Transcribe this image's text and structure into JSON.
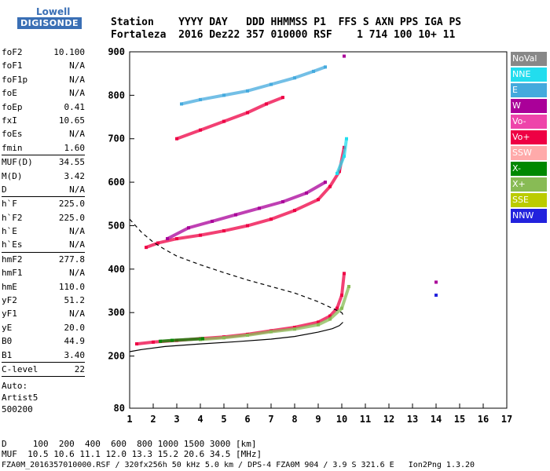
{
  "logo": {
    "line1": "Lowell",
    "line2": "DIGISONDE"
  },
  "header": {
    "row1": "Station    YYYY DAY   DDD HHMMSS P1  FFS S AXN PPS IGA PS",
    "row2": "Fortaleza  2016 Dez22 357 010000 RSF    1 714 100 10+ 11"
  },
  "params": [
    {
      "k": "foF2",
      "v": "10.100"
    },
    {
      "k": "foF1",
      "v": "N/A"
    },
    {
      "k": "foF1p",
      "v": "N/A"
    },
    {
      "k": "foE",
      "v": "N/A"
    },
    {
      "k": "foEp",
      "v": "0.41"
    },
    {
      "k": "fxI",
      "v": "10.65"
    },
    {
      "k": "foEs",
      "v": "N/A"
    },
    {
      "k": "fmin",
      "v": "1.60"
    },
    {
      "sep": true
    },
    {
      "k": "MUF(D)",
      "v": "34.55"
    },
    {
      "k": "M(D)",
      "v": "3.42"
    },
    {
      "k": "D",
      "v": "N/A"
    },
    {
      "sep": true
    },
    {
      "k": "h`F",
      "v": "225.0"
    },
    {
      "k": "h`F2",
      "v": "225.0"
    },
    {
      "k": "h`E",
      "v": "N/A"
    },
    {
      "k": "h`Es",
      "v": "N/A"
    },
    {
      "sep": true
    },
    {
      "k": "hmF2",
      "v": "277.8"
    },
    {
      "k": "hmF1",
      "v": "N/A"
    },
    {
      "k": "hmE",
      "v": "110.0"
    },
    {
      "k": "yF2",
      "v": "51.2"
    },
    {
      "k": "yF1",
      "v": "N/A"
    },
    {
      "k": "yE",
      "v": "20.0"
    },
    {
      "k": "B0",
      "v": "44.9"
    },
    {
      "k": "B1",
      "v": "3.40"
    },
    {
      "sep": true
    },
    {
      "k": "C-level",
      "v": "22"
    },
    {
      "sep": true
    }
  ],
  "auto": {
    "line1": "Auto:",
    "line2": "Artist5",
    "line3": "500200"
  },
  "legend": [
    {
      "label": "NoVal",
      "color": "#888888"
    },
    {
      "label": "NNE",
      "color": "#22ddee"
    },
    {
      "label": "E",
      "color": "#44aadd"
    },
    {
      "label": "W",
      "color": "#aa0099"
    },
    {
      "label": "Vo-",
      "color": "#ee44aa"
    },
    {
      "label": "Vo+",
      "color": "#ee0044"
    },
    {
      "label": "SSW",
      "color": "#ffaaaa"
    },
    {
      "label": "X-",
      "color": "#008800"
    },
    {
      "label": "X+",
      "color": "#88bb55"
    },
    {
      "label": "SSE",
      "color": "#bbcc00"
    },
    {
      "label": "NNW",
      "color": "#2222dd"
    }
  ],
  "footer": {
    "line1": "D     100  200  400  600  800 1000 1500 3000 [km]",
    "line2": "MUF  10.5 10.6 11.1 12.0 13.3 15.2 20.6 34.5 [MHz]",
    "line3": "FZA0M_2016357010000.RSF / 320fx256h 50 kHz 5.0 km / DPS-4 FZA0M 904 / 3.9 S 321.6 E   Ion2Png 1.3.20"
  },
  "chart_data": {
    "type": "scatter",
    "xlim": [
      1,
      17
    ],
    "ylim": [
      80,
      900
    ],
    "x_ticks": [
      1,
      2,
      3,
      4,
      5,
      6,
      7,
      8,
      9,
      10,
      11,
      12,
      13,
      14,
      15,
      16,
      17
    ],
    "y_ticks": [
      80,
      200,
      300,
      400,
      500,
      600,
      700,
      800,
      900
    ],
    "grid": false,
    "legend_position": "right",
    "series": [
      {
        "name": "E",
        "color": "#44aadd",
        "points": [
          [
            3.2,
            780
          ],
          [
            4,
            790
          ],
          [
            5,
            800
          ],
          [
            6,
            810
          ],
          [
            7,
            825
          ],
          [
            8,
            840
          ],
          [
            8.8,
            855
          ],
          [
            9.3,
            865
          ]
        ]
      },
      {
        "name": "Vo+",
        "color": "#ee0044",
        "points": [
          [
            1.7,
            450
          ],
          [
            2.2,
            460
          ],
          [
            3,
            470
          ],
          [
            4,
            478
          ],
          [
            5,
            488
          ],
          [
            6,
            500
          ],
          [
            7,
            515
          ],
          [
            8,
            535
          ],
          [
            9,
            560
          ],
          [
            9.5,
            590
          ],
          [
            9.9,
            625
          ],
          [
            10.1,
            680
          ]
        ]
      },
      {
        "name": "W",
        "color": "#aa0099",
        "points": [
          [
            2.6,
            470
          ],
          [
            3.5,
            495
          ],
          [
            4.5,
            510
          ],
          [
            5.5,
            525
          ],
          [
            6.5,
            540
          ],
          [
            7.5,
            555
          ],
          [
            8.5,
            575
          ],
          [
            9.3,
            600
          ]
        ]
      },
      {
        "name": "NNE",
        "color": "#22ddee",
        "points": [
          [
            9.8,
            620
          ],
          [
            10.1,
            660
          ],
          [
            10.2,
            700
          ]
        ]
      },
      {
        "name": "Vo+",
        "color": "#ee0044",
        "points": [
          [
            3,
            700
          ],
          [
            4,
            720
          ],
          [
            5,
            740
          ],
          [
            6,
            760
          ],
          [
            6.8,
            780
          ],
          [
            7.5,
            795
          ]
        ]
      },
      {
        "name": "Vo+",
        "color": "#ee0044",
        "points": [
          [
            1.3,
            228
          ],
          [
            2,
            232
          ],
          [
            3,
            236
          ],
          [
            4,
            240
          ],
          [
            5,
            244
          ],
          [
            6,
            250
          ],
          [
            7,
            258
          ],
          [
            8,
            266
          ],
          [
            9,
            278
          ],
          [
            9.5,
            292
          ],
          [
            9.8,
            310
          ],
          [
            10,
            340
          ],
          [
            10.1,
            390
          ]
        ]
      },
      {
        "name": "X+",
        "color": "#88bb55",
        "points": [
          [
            4,
            238
          ],
          [
            5,
            242
          ],
          [
            6,
            248
          ],
          [
            7,
            256
          ],
          [
            8,
            262
          ],
          [
            9,
            272
          ],
          [
            9.5,
            285
          ],
          [
            10,
            310
          ],
          [
            10.3,
            360
          ]
        ]
      },
      {
        "name": "X-",
        "color": "#008800",
        "points": [
          [
            2.3,
            234
          ],
          [
            2.8,
            236
          ],
          [
            4.1,
            240
          ]
        ]
      },
      {
        "name": "W",
        "color": "#aa0099",
        "points": [
          [
            10.1,
            890
          ],
          [
            14,
            370
          ]
        ]
      },
      {
        "name": "NNW",
        "color": "#2222dd",
        "points": [
          [
            14,
            340
          ]
        ]
      }
    ],
    "curves": [
      {
        "name": "profile-solid",
        "style": "solid",
        "points": [
          [
            1,
            210
          ],
          [
            1.5,
            215
          ],
          [
            2.5,
            222
          ],
          [
            4,
            228
          ],
          [
            5.5,
            233
          ],
          [
            7,
            239
          ],
          [
            8,
            245
          ],
          [
            9,
            255
          ],
          [
            9.6,
            263
          ],
          [
            9.9,
            270
          ],
          [
            10.05,
            277.8
          ]
        ]
      },
      {
        "name": "profile-dashed",
        "style": "dashed",
        "points": [
          [
            1,
            515
          ],
          [
            1.5,
            485
          ],
          [
            2,
            462
          ],
          [
            2.5,
            445
          ],
          [
            3,
            430
          ],
          [
            4,
            410
          ],
          [
            5,
            392
          ],
          [
            6,
            375
          ],
          [
            7,
            360
          ],
          [
            8,
            345
          ],
          [
            9,
            325
          ],
          [
            9.6,
            310
          ],
          [
            10,
            300
          ],
          [
            10.1,
            290
          ]
        ]
      }
    ]
  }
}
